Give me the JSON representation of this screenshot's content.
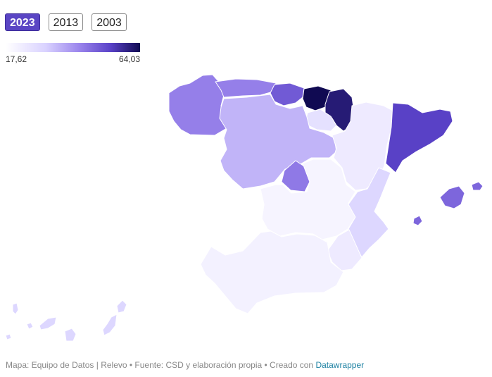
{
  "tabs": [
    {
      "label": "2023",
      "active": true
    },
    {
      "label": "2013",
      "active": false
    },
    {
      "label": "2003",
      "active": false
    }
  ],
  "legend": {
    "min_label": "17,62",
    "max_label": "64,03",
    "min": 17.62,
    "max": 64.03
  },
  "colors": {
    "scale_low": "#ffffff",
    "scale_high": "#100a52",
    "accent_tab": "#5a45c4",
    "link": "#1d81a2"
  },
  "regions": [
    {
      "id": "galicia",
      "value": 44
    },
    {
      "id": "asturias",
      "value": 44
    },
    {
      "id": "cantabria",
      "value": 50
    },
    {
      "id": "pais-vasco",
      "value": 64.03
    },
    {
      "id": "navarra",
      "value": 61
    },
    {
      "id": "la-rioja",
      "value": 27
    },
    {
      "id": "castilla-y-leon",
      "value": 36
    },
    {
      "id": "aragon",
      "value": 24
    },
    {
      "id": "cataluna",
      "value": 54
    },
    {
      "id": "madrid",
      "value": 45
    },
    {
      "id": "castilla-la-mancha",
      "value": 21
    },
    {
      "id": "extremadura",
      "value": 17.62
    },
    {
      "id": "comunidad-valenciana",
      "value": 30
    },
    {
      "id": "murcia",
      "value": 24
    },
    {
      "id": "andalucia",
      "value": 22
    },
    {
      "id": "baleares",
      "value": 48
    },
    {
      "id": "canarias",
      "value": 30
    }
  ],
  "footer": {
    "text": "Mapa: Equipo de Datos | Relevo • Fuente: CSD y elaboración propia • Creado con",
    "link_text": "Datawrapper"
  }
}
